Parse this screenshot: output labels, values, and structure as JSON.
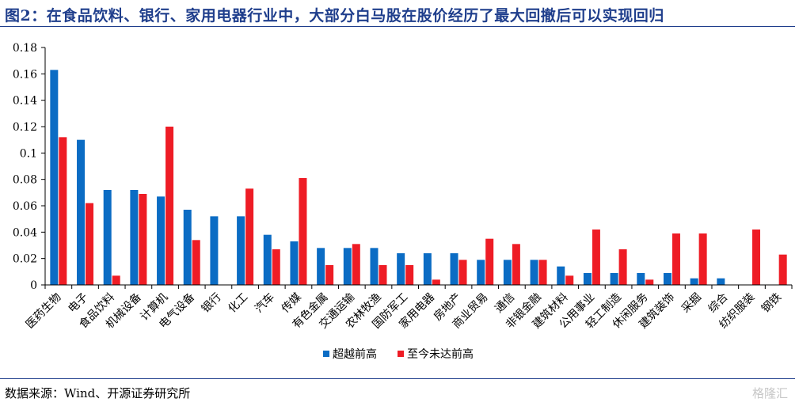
{
  "header": {
    "title": "图2：在食品饮料、银行、家用电器行业中，大部分白马股在股价经历了最大回撤后可以实现回归"
  },
  "footer": {
    "source": "数据来源：Wind、开源证券研究所",
    "watermark": "格隆汇"
  },
  "colors": {
    "title": "#1f3e8c",
    "series_1": "#0b6cc4",
    "series_2": "#ee1c25"
  },
  "chart_data": {
    "type": "bar",
    "categories": [
      "医药生物",
      "电子",
      "食品饮料",
      "机械设备",
      "计算机",
      "电气设备",
      "银行",
      "化工",
      "汽车",
      "传媒",
      "有色金属",
      "交通运输",
      "农林牧渔",
      "国防军工",
      "家用电器",
      "房地产",
      "商业贸易",
      "通信",
      "非银金融",
      "建筑材料",
      "公用事业",
      "轻工制造",
      "休闲服务",
      "建筑装饰",
      "采掘",
      "综合",
      "纺织服装",
      "钢铁"
    ],
    "series": [
      {
        "name": "超越前高",
        "color": "#0b6cc4",
        "values": [
          0.163,
          0.11,
          0.072,
          0.072,
          0.067,
          0.057,
          0.052,
          0.052,
          0.038,
          0.033,
          0.028,
          0.028,
          0.028,
          0.024,
          0.024,
          0.024,
          0.019,
          0.019,
          0.019,
          0.014,
          0.009,
          0.009,
          0.009,
          0.009,
          0.005,
          0.005,
          0,
          0
        ]
      },
      {
        "name": "至今未达前高",
        "color": "#ee1c25",
        "values": [
          0.112,
          0.062,
          0.007,
          0.069,
          0.12,
          0.034,
          0,
          0.073,
          0.027,
          0.081,
          0.015,
          0.031,
          0.015,
          0.015,
          0.004,
          0.019,
          0.035,
          0.031,
          0.019,
          0.007,
          0.042,
          0.027,
          0.004,
          0.039,
          0.039,
          0,
          0.042,
          0.023
        ]
      }
    ],
    "yticks": [
      "0",
      "0.02",
      "0.04",
      "0.06",
      "0.08",
      "0.1",
      "0.12",
      "0.14",
      "0.16",
      "0.18"
    ],
    "ylim": [
      0,
      0.18
    ],
    "grid": false,
    "legend_position": "bottom-center"
  }
}
